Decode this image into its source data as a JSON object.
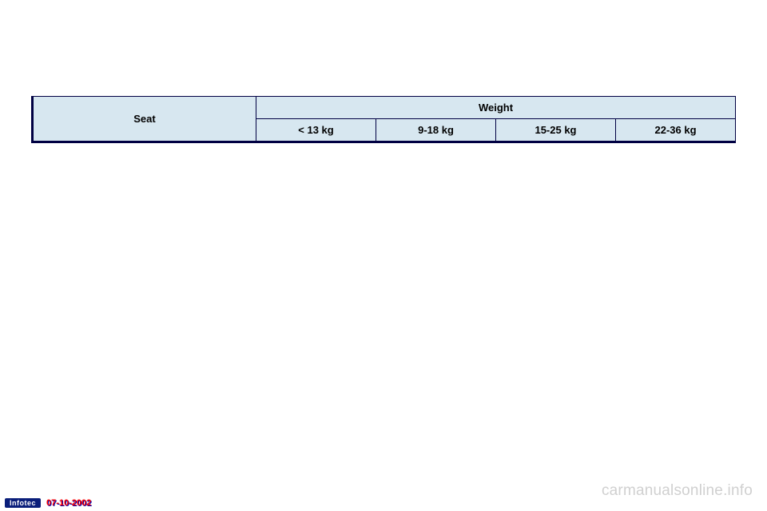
{
  "table": {
    "header_bg": "#d7e7f0",
    "border_color": "#000042",
    "seat_label": "Seat",
    "weight_label": "Weight",
    "weight_cols": [
      "< 13 kg",
      "9-18 kg",
      "15-25 kg",
      "22-36 kg"
    ]
  },
  "watermark": "carmanualsonline.info",
  "footer": {
    "badge": "Infotec",
    "date": "07-10-2002"
  }
}
